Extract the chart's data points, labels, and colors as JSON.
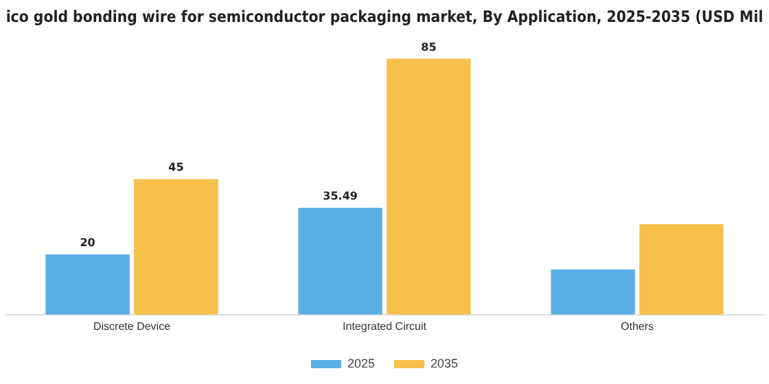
{
  "chart_data": {
    "type": "bar",
    "title": "ico gold bonding wire for semiconductor packaging market, By Application, 2025-2035 (USD Mil",
    "categories": [
      "Discrete Device",
      "Integrated Circuit",
      "Others"
    ],
    "series": [
      {
        "name": "2025",
        "color": "#5ab0e6",
        "values": [
          20,
          35.49,
          15
        ],
        "value_labels": [
          "20",
          "35.49",
          null
        ]
      },
      {
        "name": "2035",
        "color": "#f7c04a",
        "values": [
          45,
          85,
          30
        ],
        "value_labels": [
          "45",
          "85",
          null
        ]
      }
    ],
    "legend": "bottom",
    "grid": false
  }
}
